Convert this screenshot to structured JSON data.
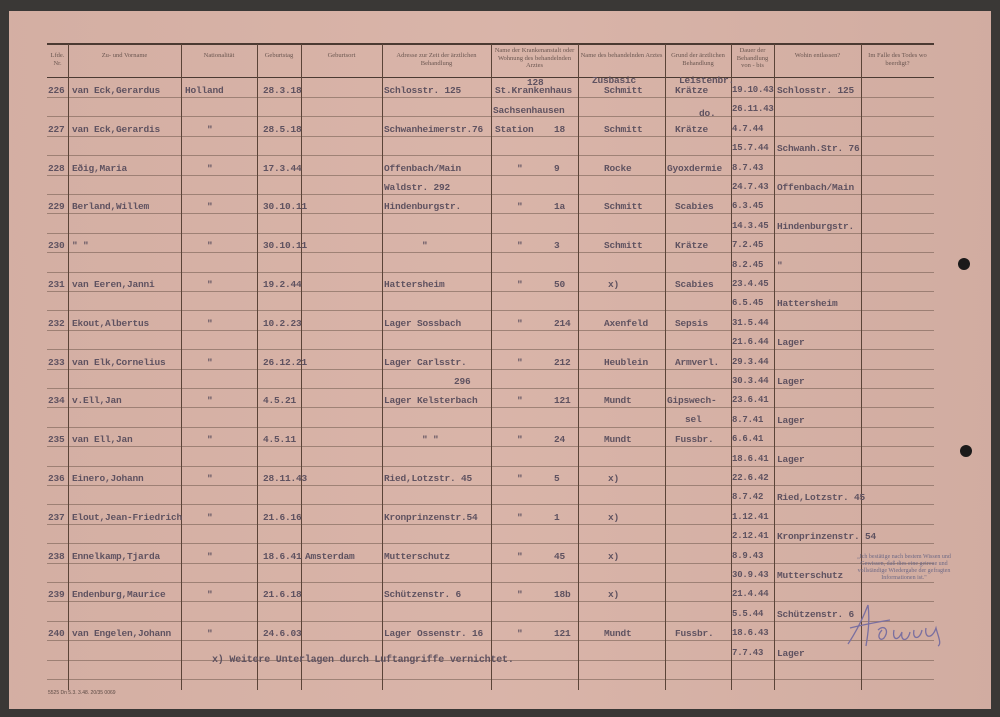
{
  "form": {
    "headers": [
      "Lfde. Nr.",
      "Zu- und Vorname",
      "Nationalität",
      "Geburtstag",
      "Geburtsort",
      "Adresse zur Zeit der ärztlichen Behandlung",
      "Name der Krankenanstalt oder Wohnung des behandelnden Arztes",
      "Name des behandelnden Arztes",
      "Grund der ärztlichen Behandlung",
      "Dauer der Behandlung von - bis",
      "Wohin entlassen?",
      "Im Falle des Todes wo beerdigt?"
    ],
    "entries": [
      {
        "nr": "226",
        "name": "van Eck,Gerardus",
        "nationality": "Holland",
        "birthdate": "28.3.18",
        "birthplace": "",
        "address": [
          "Schlosstr. 125"
        ],
        "hospital": "St.Krankenhaus",
        "hospital_no": "",
        "hospital_above": "128",
        "doctor": "Schmitt",
        "doctor_above": "Zusbasic",
        "reason": "Krätze",
        "reason_above": "Leistenbr."
      },
      {
        "nr": "227",
        "name": "van Eck,Gerardis",
        "nationality": "\"",
        "birthdate": "28.5.18",
        "birthplace": "",
        "address": [
          "Schwanheimerstr.76"
        ],
        "hospital": "Station",
        "hospital_no": "18",
        "hospital_above": "Sachsenhausen",
        "doctor": "Schmitt",
        "doctor_above": "",
        "reason": "Krätze",
        "reason_above": "do."
      },
      {
        "nr": "228",
        "name": "Eðig,Maria",
        "nationality": "\"",
        "birthdate": "17.3.44",
        "birthplace": "",
        "address": [
          "Offenbach/Main",
          "Waldstr. 292"
        ],
        "hospital": "\"",
        "hospital_no": "9",
        "hospital_above": "",
        "doctor": "Rocke",
        "doctor_above": "",
        "reason": "Gyoxdermie",
        "reason_above": ""
      },
      {
        "nr": "229",
        "name": "Berland,Willem",
        "nationality": "\"",
        "birthdate": "30.10.11",
        "birthplace": "",
        "address": [
          "Hindenburgstr."
        ],
        "hospital": "\"",
        "hospital_no": "1a",
        "hospital_above": "",
        "doctor": "Schmitt",
        "doctor_above": "",
        "reason": "Scabies",
        "reason_above": ""
      },
      {
        "nr": "230",
        "name": "\"      \"",
        "nationality": "\"",
        "birthdate": "30.10.11",
        "birthplace": "",
        "address": [
          "\""
        ],
        "hospital": "\"",
        "hospital_no": "3",
        "hospital_above": "",
        "doctor": "Schmitt",
        "doctor_above": "",
        "reason": "Krätze",
        "reason_above": ""
      },
      {
        "nr": "231",
        "name": "van Eeren,Janni",
        "nationality": "\"",
        "birthdate": "19.2.44",
        "birthplace": "",
        "address": [
          "Hattersheim"
        ],
        "hospital": "\"",
        "hospital_no": "50",
        "hospital_above": "",
        "doctor": "x)",
        "doctor_above": "",
        "reason": "Scabies",
        "reason_above": ""
      },
      {
        "nr": "232",
        "name": "Ekout,Albertus",
        "nationality": "\"",
        "birthdate": "10.2.23",
        "birthplace": "",
        "address": [
          "Lager Sossbach"
        ],
        "hospital": "\"",
        "hospital_no": "214",
        "hospital_above": "",
        "doctor": "Axenfeld",
        "doctor_above": "",
        "reason": "Sepsis",
        "reason_above": ""
      },
      {
        "nr": "233",
        "name": "van Elk,Cornelius",
        "nationality": "\"",
        "birthdate": "26.12.21",
        "birthplace": "",
        "address": [
          "Lager Carlsstr.",
          "296"
        ],
        "hospital": "\"",
        "hospital_no": "212",
        "hospital_above": "",
        "doctor": "Heublein",
        "doctor_above": "",
        "reason": "Armverl.",
        "reason_above": ""
      },
      {
        "nr": "234",
        "name": "v.Ell,Jan",
        "nationality": "\"",
        "birthdate": "4.5.21",
        "birthplace": "",
        "address": [
          "Lager Kelsterbach"
        ],
        "hospital": "\"",
        "hospital_no": "121",
        "hospital_above": "",
        "doctor": "Mundt",
        "doctor_above": "",
        "reason": "Gipswech-",
        "reason2": "sel",
        "reason_above": ""
      },
      {
        "nr": "235",
        "name": "van Ell,Jan",
        "nationality": "\"",
        "birthdate": "4.5.11",
        "birthplace": "",
        "address": [
          "\"      \""
        ],
        "hospital": "\"",
        "hospital_no": "24",
        "hospital_above": "",
        "doctor": "Mundt",
        "doctor_above": "",
        "reason": "Fussbr.",
        "reason_above": ""
      },
      {
        "nr": "236",
        "name": "Einero,Johann",
        "nationality": "\"",
        "birthdate": "28.11.43",
        "birthplace": "",
        "address": [
          "Ried,Lotzstr. 45"
        ],
        "hospital": "\"",
        "hospital_no": "5",
        "hospital_above": "",
        "doctor": "x)",
        "doctor_above": "",
        "reason": "",
        "reason_above": ""
      },
      {
        "nr": "237",
        "name": "Elout,Jean-Friedrich",
        "nationality": "\"",
        "birthdate": "21.6.16",
        "birthplace": "",
        "address": [
          "Kronprinzenstr.54"
        ],
        "hospital": "\"",
        "hospital_no": "1",
        "hospital_above": "",
        "doctor": "x)",
        "doctor_above": "",
        "reason": "",
        "reason_above": ""
      },
      {
        "nr": "238",
        "name": "Ennelkamp,Tjarda",
        "nationality": "\"",
        "birthdate": "18.6.41",
        "birthplace": "Amsterdam",
        "address": [
          "Mutterschutz"
        ],
        "hospital": "\"",
        "hospital_no": "45",
        "hospital_above": "",
        "doctor": "x)",
        "doctor_above": "",
        "reason": "",
        "reason_above": ""
      },
      {
        "nr": "239",
        "name": "Endenburg,Maurice",
        "nationality": "\"",
        "birthdate": "21.6.18",
        "birthplace": "",
        "address": [
          "Schützenstr. 6"
        ],
        "hospital": "\"",
        "hospital_no": "18b",
        "hospital_above": "",
        "doctor": "x)",
        "doctor_above": "",
        "reason": "",
        "reason_above": ""
      },
      {
        "nr": "240",
        "name": "van Engelen,Johann",
        "nationality": "\"",
        "birthdate": "24.6.03",
        "birthplace": "",
        "address": [
          "Lager Ossenstr. 16"
        ],
        "hospital": "\"",
        "hospital_no": "121",
        "hospital_above": "",
        "doctor": "Mundt",
        "doctor_above": "",
        "reason": "Fussbr.",
        "reason_above": ""
      }
    ],
    "duration_lines": [
      {
        "date": "19.10.43",
        "discharged": "Schlosstr. 125"
      },
      {
        "date": "26.11.43",
        "discharged": ""
      },
      {
        "date": "4.7.44",
        "discharged": ""
      },
      {
        "date": "15.7.44",
        "discharged": "Schwanh.Str. 76"
      },
      {
        "date": "8.7.43",
        "discharged": ""
      },
      {
        "date": "24.7.43",
        "discharged": "Offenbach/Main"
      },
      {
        "date": "6.3.45",
        "discharged": ""
      },
      {
        "date": "14.3.45",
        "discharged": "Hindenburgstr."
      },
      {
        "date": "7.2.45",
        "discharged": ""
      },
      {
        "date": "8.2.45",
        "discharged": "\""
      },
      {
        "date": "23.4.45",
        "discharged": ""
      },
      {
        "date": "6.5.45",
        "discharged": "Hattersheim"
      },
      {
        "date": "31.5.44",
        "discharged": ""
      },
      {
        "date": "21.6.44",
        "discharged": "Lager"
      },
      {
        "date": "29.3.44",
        "discharged": ""
      },
      {
        "date": "30.3.44",
        "discharged": "Lager"
      },
      {
        "date": "23.6.41",
        "discharged": ""
      },
      {
        "date": "8.7.41",
        "discharged": "Lager"
      },
      {
        "date": "6.6.41",
        "discharged": ""
      },
      {
        "date": "18.6.41",
        "discharged": "Lager"
      },
      {
        "date": "22.6.42",
        "discharged": ""
      },
      {
        "date": "8.7.42",
        "discharged": "Ried,Lotzstr. 45"
      },
      {
        "date": "1.12.41",
        "discharged": ""
      },
      {
        "date": "2.12.41",
        "discharged": "Kronprinzenstr. 54"
      },
      {
        "date": "8.9.43",
        "discharged": ""
      },
      {
        "date": "30.9.43",
        "discharged": "Mutterschutz"
      },
      {
        "date": "21.4.44",
        "discharged": ""
      },
      {
        "date": "5.5.44",
        "discharged": "Schützenstr. 6"
      },
      {
        "date": "18.6.43",
        "discharged": ""
      },
      {
        "date": "7.7.43",
        "discharged": "Lager"
      }
    ],
    "footnote": "x) Weitere Unterlagen durch Luftangriffe vernichtet.",
    "stamp": "„Ich bestätige nach bestem Wissen und Gewissen, daß dies eine getreue und vollständige Wiedergabe der gefragten Informationen ist.\"",
    "signature": "Hoeus",
    "form_code": "5525 Dn 5.3. 3.48. 20/35 0069"
  },
  "colors": {
    "paper": "#d8b2a6",
    "ink": "#5f5260",
    "rule": "#5b4438",
    "stamp_ink": "#6f6a86"
  }
}
